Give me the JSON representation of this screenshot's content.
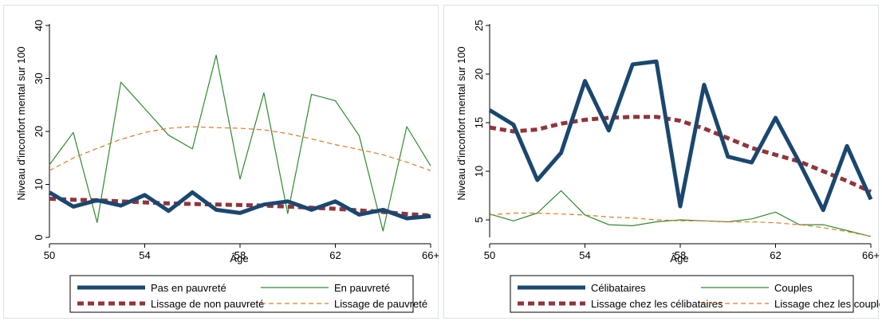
{
  "chart_data": [
    {
      "type": "line",
      "xlabel": "Âge",
      "ylabel": "Niveau d'inconfort mental sur 100",
      "x": [
        50,
        51,
        52,
        53,
        54,
        55,
        56,
        57,
        58,
        59,
        60,
        61,
        62,
        63,
        64,
        65,
        66
      ],
      "x_ticks": [
        50,
        54,
        58,
        62,
        66
      ],
      "x_tick_labels": [
        "50",
        "54",
        "58",
        "62",
        "66+"
      ],
      "xlim": [
        50,
        66
      ],
      "ylim": [
        0,
        40
      ],
      "y_ticks": [
        0,
        10,
        20,
        30,
        40
      ],
      "grid": false,
      "legend_position": "bottom",
      "series": [
        {
          "name": "Pas en pauvreté",
          "style": "thick-solid",
          "color": "#1a476f",
          "values": [
            8.5,
            5.8,
            7.0,
            6.0,
            8.0,
            5.0,
            8.5,
            5.2,
            4.6,
            6.2,
            6.8,
            5.2,
            6.8,
            4.3,
            5.2,
            3.6,
            4.0
          ]
        },
        {
          "name": "En pauvreté",
          "style": "thin-solid",
          "color": "#2e8b2e",
          "values": [
            13.7,
            19.8,
            2.8,
            29.3,
            24.3,
            19.3,
            16.7,
            34.4,
            11.0,
            27.3,
            4.5,
            27.0,
            25.8,
            19.2,
            1.2,
            20.9,
            13.5
          ]
        },
        {
          "name": "Lissage de non pauvreté",
          "style": "thick-dash",
          "color": "#90353b",
          "values": [
            7.3,
            7.1,
            7.0,
            6.8,
            6.6,
            6.4,
            6.3,
            6.2,
            6.1,
            6.0,
            5.8,
            5.6,
            5.4,
            5.1,
            4.8,
            4.4,
            4.1
          ]
        },
        {
          "name": "Lissage de pauvreté",
          "style": "thin-dash",
          "color": "#e07b24",
          "values": [
            12.6,
            15.0,
            16.8,
            18.5,
            19.8,
            20.6,
            20.9,
            20.7,
            20.6,
            20.3,
            19.6,
            18.6,
            17.5,
            16.6,
            15.6,
            14.2,
            12.6
          ]
        }
      ]
    },
    {
      "type": "line",
      "xlabel": "Âge",
      "ylabel": "Niveau d'inconfort mental sur 100",
      "x": [
        50,
        51,
        52,
        53,
        54,
        55,
        56,
        57,
        58,
        59,
        60,
        61,
        62,
        63,
        64,
        65,
        66
      ],
      "x_ticks": [
        50,
        54,
        58,
        62,
        66
      ],
      "x_tick_labels": [
        "50",
        "54",
        "58",
        "62",
        "66+"
      ],
      "xlim": [
        50,
        66
      ],
      "ylim": [
        3.2,
        25
      ],
      "y_ticks": [
        5,
        10,
        15,
        20,
        25
      ],
      "grid": false,
      "legend_position": "bottom",
      "series": [
        {
          "name": "Célibataires",
          "style": "thick-solid",
          "color": "#1a476f",
          "values": [
            16.3,
            14.8,
            9.1,
            11.9,
            19.3,
            14.2,
            21.0,
            21.3,
            6.4,
            18.9,
            11.5,
            10.9,
            15.5,
            10.9,
            6.0,
            12.6,
            7.1
          ]
        },
        {
          "name": "Couples",
          "style": "thin-solid",
          "color": "#2e8b2e",
          "values": [
            5.6,
            4.9,
            5.7,
            8.0,
            5.5,
            4.5,
            4.4,
            4.8,
            5.0,
            4.9,
            4.8,
            5.1,
            5.8,
            4.5,
            4.5,
            3.9,
            3.3
          ]
        },
        {
          "name": "Lissage chez les célibataires",
          "style": "thick-dash",
          "color": "#90353b",
          "values": [
            14.5,
            14.1,
            14.3,
            14.9,
            15.3,
            15.5,
            15.6,
            15.6,
            15.2,
            14.4,
            13.4,
            12.4,
            11.7,
            11.0,
            10.0,
            9.0,
            7.9
          ]
        },
        {
          "name": "Lissage chez les couples",
          "style": "thin-dash",
          "color": "#e07b24",
          "values": [
            5.5,
            5.7,
            5.7,
            5.6,
            5.5,
            5.3,
            5.2,
            5.0,
            4.9,
            4.9,
            4.8,
            4.8,
            4.7,
            4.5,
            4.2,
            3.8,
            3.3
          ]
        }
      ]
    }
  ]
}
